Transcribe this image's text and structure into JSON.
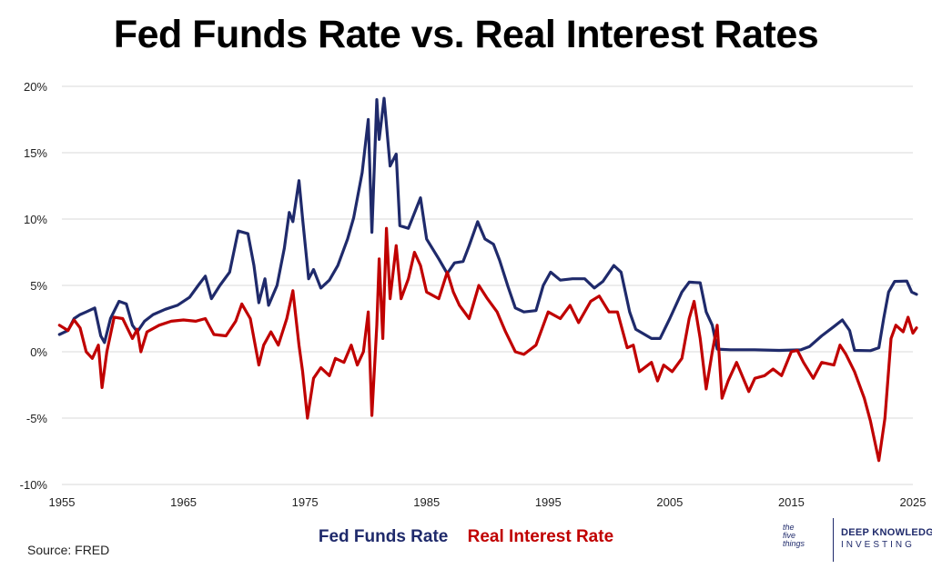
{
  "chart_data": {
    "type": "line",
    "title": "Fed Funds Rate vs. Real Interest Rates",
    "xlabel": "",
    "ylabel": "",
    "xlim": [
      1955,
      2025
    ],
    "ylim": [
      -10,
      20
    ],
    "x_ticks": [
      "1955",
      "1965",
      "1975",
      "1985",
      "1995",
      "2005",
      "2015",
      "2025"
    ],
    "y_ticks": [
      "20%",
      "15%",
      "10%",
      "5%",
      "0%",
      "-5%",
      "-10%"
    ],
    "grid": true,
    "legend_position": "bottom-center",
    "source": "Source: FRED",
    "series": [
      {
        "name": "Fed Funds Rate",
        "color": "#1f2a6b",
        "points": [
          [
            1954.8,
            1.3
          ],
          [
            1955.5,
            1.6
          ],
          [
            1956,
            2.5
          ],
          [
            1956.5,
            2.8
          ],
          [
            1957,
            3.0
          ],
          [
            1957.7,
            3.3
          ],
          [
            1958.2,
            1.2
          ],
          [
            1958.5,
            0.7
          ],
          [
            1959,
            2.5
          ],
          [
            1959.7,
            3.8
          ],
          [
            1960.3,
            3.6
          ],
          [
            1960.8,
            2.0
          ],
          [
            1961.2,
            1.5
          ],
          [
            1961.8,
            2.3
          ],
          [
            1962.5,
            2.8
          ],
          [
            1963.5,
            3.2
          ],
          [
            1964.5,
            3.5
          ],
          [
            1965.5,
            4.1
          ],
          [
            1966.3,
            5.1
          ],
          [
            1966.8,
            5.7
          ],
          [
            1967.3,
            4.0
          ],
          [
            1968,
            5.0
          ],
          [
            1968.8,
            6.0
          ],
          [
            1969.5,
            9.1
          ],
          [
            1970.3,
            8.9
          ],
          [
            1970.8,
            6.5
          ],
          [
            1971.2,
            3.7
          ],
          [
            1971.7,
            5.5
          ],
          [
            1972,
            3.5
          ],
          [
            1972.7,
            5.0
          ],
          [
            1973.3,
            7.8
          ],
          [
            1973.7,
            10.5
          ],
          [
            1974,
            9.8
          ],
          [
            1974.5,
            12.9
          ],
          [
            1974.8,
            10.0
          ],
          [
            1975.3,
            5.5
          ],
          [
            1975.7,
            6.2
          ],
          [
            1976.3,
            4.8
          ],
          [
            1977,
            5.4
          ],
          [
            1977.7,
            6.5
          ],
          [
            1978.5,
            8.5
          ],
          [
            1979,
            10.1
          ],
          [
            1979.7,
            13.5
          ],
          [
            1980.2,
            17.5
          ],
          [
            1980.5,
            9.0
          ],
          [
            1980.9,
            19.0
          ],
          [
            1981.1,
            16.0
          ],
          [
            1981.5,
            19.1
          ],
          [
            1982,
            14.0
          ],
          [
            1982.5,
            14.9
          ],
          [
            1982.8,
            9.5
          ],
          [
            1983.5,
            9.3
          ],
          [
            1984.5,
            11.6
          ],
          [
            1985,
            8.5
          ],
          [
            1986,
            7.0
          ],
          [
            1986.7,
            5.9
          ],
          [
            1987.3,
            6.7
          ],
          [
            1988,
            6.8
          ],
          [
            1988.5,
            8.0
          ],
          [
            1989.2,
            9.8
          ],
          [
            1989.8,
            8.5
          ],
          [
            1990.5,
            8.1
          ],
          [
            1991,
            6.9
          ],
          [
            1991.7,
            4.9
          ],
          [
            1992.3,
            3.3
          ],
          [
            1993,
            3.0
          ],
          [
            1994,
            3.1
          ],
          [
            1994.6,
            5.0
          ],
          [
            1995.2,
            6.0
          ],
          [
            1996,
            5.4
          ],
          [
            1997,
            5.5
          ],
          [
            1998,
            5.5
          ],
          [
            1998.8,
            4.8
          ],
          [
            1999.5,
            5.3
          ],
          [
            2000.4,
            6.5
          ],
          [
            2001,
            6.0
          ],
          [
            2001.7,
            3.0
          ],
          [
            2002.2,
            1.7
          ],
          [
            2003.5,
            1.0
          ],
          [
            2004.2,
            1.0
          ],
          [
            2005,
            2.5
          ],
          [
            2006,
            4.5
          ],
          [
            2006.6,
            5.25
          ],
          [
            2007.5,
            5.2
          ],
          [
            2008,
            3.0
          ],
          [
            2008.5,
            2.0
          ],
          [
            2008.9,
            0.2
          ],
          [
            2010,
            0.15
          ],
          [
            2012,
            0.15
          ],
          [
            2014,
            0.1
          ],
          [
            2015.8,
            0.15
          ],
          [
            2016.5,
            0.4
          ],
          [
            2017.5,
            1.2
          ],
          [
            2018.5,
            1.9
          ],
          [
            2019.2,
            2.4
          ],
          [
            2019.8,
            1.6
          ],
          [
            2020.2,
            0.1
          ],
          [
            2021.5,
            0.08
          ],
          [
            2022.2,
            0.3
          ],
          [
            2022.6,
            2.5
          ],
          [
            2023,
            4.5
          ],
          [
            2023.5,
            5.3
          ],
          [
            2024.5,
            5.33
          ],
          [
            2024.9,
            4.5
          ],
          [
            2025.3,
            4.33
          ]
        ]
      },
      {
        "name": "Real Interest Rate",
        "color": "#c00000",
        "points": [
          [
            1954.8,
            2.0
          ],
          [
            1955.5,
            1.6
          ],
          [
            1956,
            2.4
          ],
          [
            1956.5,
            1.8
          ],
          [
            1957,
            0.0
          ],
          [
            1957.5,
            -0.5
          ],
          [
            1958,
            0.5
          ],
          [
            1958.3,
            -2.7
          ],
          [
            1958.7,
            0.0
          ],
          [
            1959.3,
            2.6
          ],
          [
            1960,
            2.5
          ],
          [
            1960.8,
            1.0
          ],
          [
            1961.2,
            1.7
          ],
          [
            1961.5,
            0.0
          ],
          [
            1962,
            1.5
          ],
          [
            1963,
            2.0
          ],
          [
            1964,
            2.3
          ],
          [
            1965,
            2.4
          ],
          [
            1966,
            2.3
          ],
          [
            1966.8,
            2.5
          ],
          [
            1967.5,
            1.3
          ],
          [
            1968.5,
            1.2
          ],
          [
            1969.3,
            2.3
          ],
          [
            1969.8,
            3.6
          ],
          [
            1970.5,
            2.5
          ],
          [
            1971.2,
            -1.0
          ],
          [
            1971.6,
            0.5
          ],
          [
            1972.2,
            1.5
          ],
          [
            1972.8,
            0.5
          ],
          [
            1973.5,
            2.5
          ],
          [
            1974,
            4.6
          ],
          [
            1974.5,
            0.5
          ],
          [
            1974.8,
            -1.5
          ],
          [
            1975.2,
            -5.0
          ],
          [
            1975.7,
            -2.0
          ],
          [
            1976.3,
            -1.2
          ],
          [
            1977,
            -1.8
          ],
          [
            1977.5,
            -0.5
          ],
          [
            1978.2,
            -0.8
          ],
          [
            1978.8,
            0.5
          ],
          [
            1979.3,
            -1.0
          ],
          [
            1979.8,
            0.0
          ],
          [
            1980.2,
            3.0
          ],
          [
            1980.5,
            -4.8
          ],
          [
            1980.9,
            2.0
          ],
          [
            1981.1,
            7.0
          ],
          [
            1981.4,
            1.0
          ],
          [
            1981.7,
            9.3
          ],
          [
            1982,
            4.0
          ],
          [
            1982.5,
            8.0
          ],
          [
            1982.9,
            4.0
          ],
          [
            1983.5,
            5.5
          ],
          [
            1984,
            7.5
          ],
          [
            1984.5,
            6.5
          ],
          [
            1985,
            4.5
          ],
          [
            1986,
            4.0
          ],
          [
            1986.7,
            6.0
          ],
          [
            1987.2,
            4.5
          ],
          [
            1987.7,
            3.5
          ],
          [
            1988.5,
            2.5
          ],
          [
            1989.3,
            5.0
          ],
          [
            1990,
            4.0
          ],
          [
            1990.8,
            3.0
          ],
          [
            1991.5,
            1.5
          ],
          [
            1992.3,
            0.0
          ],
          [
            1993,
            -0.2
          ],
          [
            1994,
            0.5
          ],
          [
            1995,
            3.0
          ],
          [
            1996,
            2.5
          ],
          [
            1996.8,
            3.5
          ],
          [
            1997.5,
            2.2
          ],
          [
            1998.5,
            3.8
          ],
          [
            1999.2,
            4.2
          ],
          [
            2000,
            3.0
          ],
          [
            2000.7,
            3.0
          ],
          [
            2001.5,
            0.3
          ],
          [
            2002,
            0.5
          ],
          [
            2002.5,
            -1.5
          ],
          [
            2003.5,
            -0.8
          ],
          [
            2004,
            -2.2
          ],
          [
            2004.5,
            -1.0
          ],
          [
            2005.2,
            -1.5
          ],
          [
            2006,
            -0.5
          ],
          [
            2006.6,
            2.5
          ],
          [
            2007,
            3.8
          ],
          [
            2007.5,
            1.0
          ],
          [
            2008,
            -2.8
          ],
          [
            2008.5,
            0.0
          ],
          [
            2008.9,
            2.0
          ],
          [
            2009.3,
            -3.5
          ],
          [
            2009.8,
            -2.2
          ],
          [
            2010.5,
            -0.8
          ],
          [
            2011.5,
            -3.0
          ],
          [
            2012,
            -2.0
          ],
          [
            2012.8,
            -1.8
          ],
          [
            2013.5,
            -1.3
          ],
          [
            2014.2,
            -1.8
          ],
          [
            2015,
            0.0
          ],
          [
            2015.5,
            0.1
          ],
          [
            2016,
            -0.8
          ],
          [
            2016.8,
            -2.0
          ],
          [
            2017.5,
            -0.8
          ],
          [
            2018.5,
            -1.0
          ],
          [
            2019,
            0.5
          ],
          [
            2019.5,
            -0.2
          ],
          [
            2020.2,
            -1.5
          ],
          [
            2021,
            -3.5
          ],
          [
            2021.5,
            -5.2
          ],
          [
            2022.2,
            -8.2
          ],
          [
            2022.7,
            -5.0
          ],
          [
            2023.2,
            1.0
          ],
          [
            2023.6,
            2.0
          ],
          [
            2024.2,
            1.5
          ],
          [
            2024.6,
            2.6
          ],
          [
            2025,
            1.4
          ],
          [
            2025.3,
            1.8
          ]
        ]
      }
    ]
  },
  "legend": {
    "fed_funds_label": "Fed Funds Rate",
    "real_rate_label": "Real Interest Rate"
  },
  "branding": {
    "mark_lines": [
      "the",
      "five",
      "things"
    ],
    "line1": "DEEP KNOWLEDGE",
    "line2": "INVESTING"
  }
}
